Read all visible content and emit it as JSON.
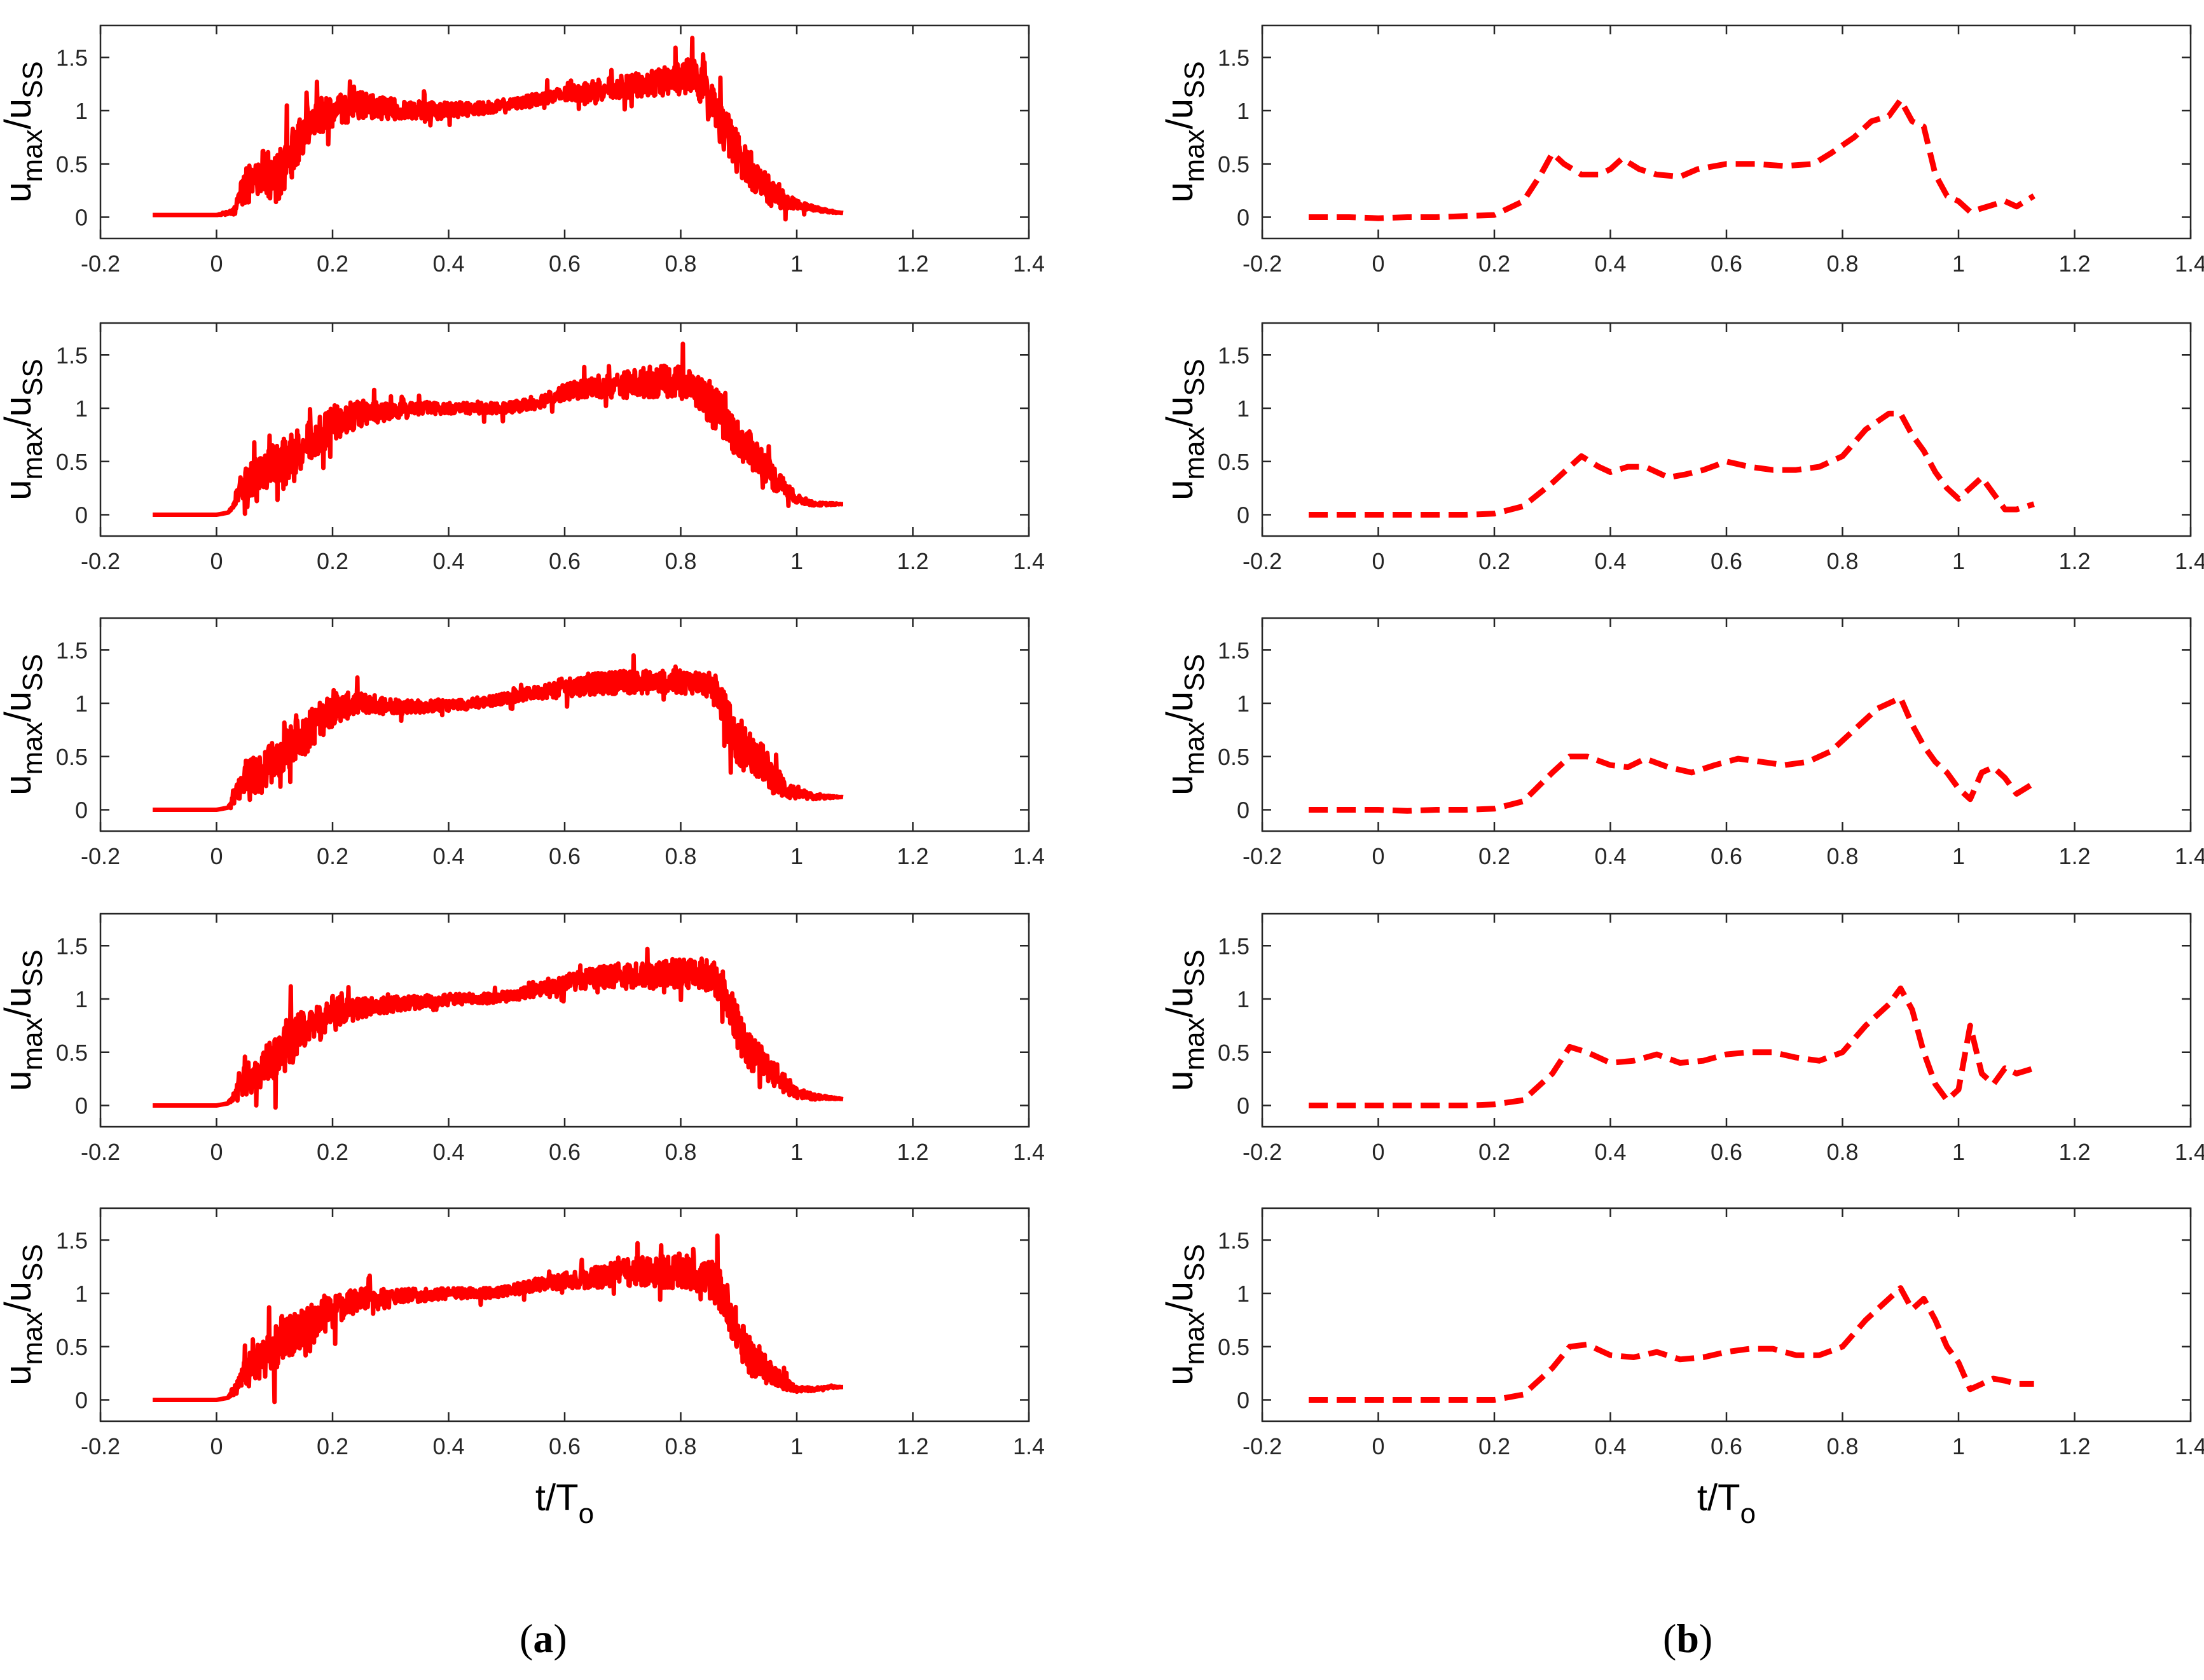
{
  "figure": {
    "panel_labels": [
      {
        "open": "(",
        "letter": "a",
        "close": ")"
      },
      {
        "open": "(",
        "letter": "b",
        "close": ")"
      }
    ],
    "ylabel": {
      "main": "u",
      "sub1": "max",
      "slash": "/u",
      "sub2": "SS"
    },
    "xlabel": {
      "main": "t/T",
      "sub": "o"
    },
    "colors": {
      "series": "#ff0000",
      "axes": "#262626",
      "tick_text": "#262626"
    }
  },
  "chart_data": [
    {
      "type": "line",
      "column": "a",
      "row": 1,
      "line_style": "solid",
      "xlim": [
        -0.2,
        1.4
      ],
      "ylim": [
        -0.2,
        1.8
      ],
      "xticks": [
        "-0.2",
        "0",
        "0.2",
        "0.4",
        "0.6",
        "0.8",
        "1",
        "1.2",
        "1.4"
      ],
      "yticks": [
        "0",
        "0.5",
        "1",
        "1.5"
      ],
      "x": [
        -0.11,
        -0.05,
        0.0,
        0.03,
        0.05,
        0.08,
        0.1,
        0.12,
        0.15,
        0.18,
        0.2,
        0.25,
        0.3,
        0.35,
        0.4,
        0.45,
        0.5,
        0.55,
        0.6,
        0.65,
        0.7,
        0.75,
        0.8,
        0.82,
        0.84,
        0.86,
        0.88,
        0.9,
        0.92,
        0.94,
        0.96,
        0.98,
        1.0,
        1.03,
        1.06,
        1.08
      ],
      "y": [
        0.02,
        0.02,
        0.02,
        0.05,
        0.3,
        0.45,
        0.35,
        0.5,
        0.8,
        0.95,
        1.0,
        1.05,
        1.02,
        1.0,
        1.0,
        1.02,
        1.05,
        1.1,
        1.15,
        1.2,
        1.22,
        1.25,
        1.3,
        1.35,
        1.2,
        1.0,
        0.75,
        0.6,
        0.45,
        0.3,
        0.22,
        0.15,
        0.12,
        0.08,
        0.05,
        0.04
      ],
      "noise": [
        0,
        0,
        0,
        0.05,
        0.4,
        0.4,
        0.45,
        0.5,
        0.4,
        0.35,
        0.3,
        0.25,
        0.2,
        0.18,
        0.15,
        0.12,
        0.1,
        0.12,
        0.15,
        0.2,
        0.22,
        0.25,
        0.3,
        0.35,
        0.35,
        0.4,
        0.45,
        0.4,
        0.35,
        0.3,
        0.25,
        0.15,
        0.08,
        0.04,
        0.02,
        0.0
      ]
    },
    {
      "type": "line",
      "column": "a",
      "row": 2,
      "line_style": "solid",
      "xlim": [
        -0.2,
        1.4
      ],
      "ylim": [
        -0.2,
        1.8
      ],
      "xticks": [
        "-0.2",
        "0",
        "0.2",
        "0.4",
        "0.6",
        "0.8",
        "1",
        "1.2",
        "1.4"
      ],
      "yticks": [
        "0",
        "0.5",
        "1",
        "1.5"
      ],
      "x": [
        -0.11,
        -0.05,
        0.0,
        0.02,
        0.05,
        0.08,
        0.1,
        0.12,
        0.15,
        0.18,
        0.2,
        0.25,
        0.3,
        0.35,
        0.4,
        0.45,
        0.5,
        0.55,
        0.6,
        0.65,
        0.7,
        0.75,
        0.8,
        0.82,
        0.84,
        0.86,
        0.88,
        0.9,
        0.92,
        0.94,
        0.96,
        0.98,
        1.0,
        1.03,
        1.06,
        1.08
      ],
      "y": [
        0.0,
        0.0,
        0.0,
        0.02,
        0.3,
        0.4,
        0.5,
        0.55,
        0.65,
        0.75,
        0.85,
        0.95,
        0.97,
        1.0,
        1.0,
        1.0,
        1.0,
        1.05,
        1.15,
        1.2,
        1.22,
        1.25,
        1.25,
        1.2,
        1.1,
        1.0,
        0.85,
        0.7,
        0.6,
        0.5,
        0.35,
        0.25,
        0.15,
        0.1,
        0.1,
        0.1
      ],
      "noise": [
        0,
        0,
        0,
        0.0,
        0.3,
        0.35,
        0.4,
        0.45,
        0.4,
        0.35,
        0.35,
        0.25,
        0.15,
        0.12,
        0.1,
        0.1,
        0.1,
        0.12,
        0.15,
        0.2,
        0.25,
        0.3,
        0.3,
        0.3,
        0.35,
        0.4,
        0.4,
        0.35,
        0.35,
        0.3,
        0.25,
        0.15,
        0.08,
        0.03,
        0.02,
        0.0
      ]
    },
    {
      "type": "line",
      "column": "a",
      "row": 3,
      "line_style": "solid",
      "xlim": [
        -0.2,
        1.4
      ],
      "ylim": [
        -0.2,
        1.8
      ],
      "xticks": [
        "-0.2",
        "0",
        "0.2",
        "0.4",
        "0.6",
        "0.8",
        "1",
        "1.2",
        "1.4"
      ],
      "yticks": [
        "0",
        "0.5",
        "1",
        "1.5"
      ],
      "x": [
        -0.11,
        -0.05,
        0.0,
        0.02,
        0.05,
        0.08,
        0.1,
        0.12,
        0.15,
        0.18,
        0.2,
        0.25,
        0.3,
        0.35,
        0.4,
        0.45,
        0.5,
        0.55,
        0.6,
        0.65,
        0.7,
        0.75,
        0.8,
        0.83,
        0.86,
        0.88,
        0.9,
        0.92,
        0.94,
        0.96,
        0.98,
        1.0,
        1.03,
        1.06,
        1.08
      ],
      "y": [
        0.0,
        0.0,
        0.0,
        0.02,
        0.3,
        0.35,
        0.45,
        0.55,
        0.7,
        0.85,
        0.95,
        1.0,
        0.98,
        0.97,
        0.98,
        1.0,
        1.05,
        1.1,
        1.15,
        1.18,
        1.2,
        1.2,
        1.2,
        1.2,
        1.15,
        0.85,
        0.6,
        0.55,
        0.45,
        0.3,
        0.2,
        0.15,
        0.12,
        0.12,
        0.12
      ],
      "noise": [
        0,
        0,
        0,
        0.0,
        0.35,
        0.4,
        0.4,
        0.4,
        0.4,
        0.35,
        0.3,
        0.2,
        0.15,
        0.12,
        0.1,
        0.1,
        0.1,
        0.12,
        0.18,
        0.2,
        0.22,
        0.22,
        0.22,
        0.22,
        0.25,
        0.4,
        0.45,
        0.4,
        0.35,
        0.3,
        0.2,
        0.1,
        0.05,
        0.02,
        0.0
      ]
    },
    {
      "type": "line",
      "column": "a",
      "row": 4,
      "line_style": "solid",
      "xlim": [
        -0.2,
        1.4
      ],
      "ylim": [
        -0.2,
        1.8
      ],
      "xticks": [
        "-0.2",
        "0",
        "0.2",
        "0.4",
        "0.6",
        "0.8",
        "1",
        "1.2",
        "1.4"
      ],
      "yticks": [
        "0",
        "0.5",
        "1",
        "1.5"
      ],
      "x": [
        -0.11,
        -0.05,
        0.0,
        0.02,
        0.05,
        0.08,
        0.1,
        0.12,
        0.15,
        0.18,
        0.2,
        0.25,
        0.3,
        0.35,
        0.4,
        0.45,
        0.5,
        0.55,
        0.6,
        0.65,
        0.7,
        0.75,
        0.8,
        0.83,
        0.86,
        0.88,
        0.9,
        0.92,
        0.94,
        0.96,
        0.98,
        1.0,
        1.03,
        1.06,
        1.08
      ],
      "y": [
        0.0,
        0.0,
        0.0,
        0.02,
        0.25,
        0.35,
        0.45,
        0.55,
        0.7,
        0.8,
        0.88,
        0.92,
        0.95,
        0.97,
        1.0,
        1.0,
        1.02,
        1.08,
        1.15,
        1.2,
        1.22,
        1.22,
        1.25,
        1.25,
        1.2,
        1.0,
        0.7,
        0.5,
        0.4,
        0.3,
        0.2,
        0.12,
        0.08,
        0.07,
        0.06
      ],
      "noise": [
        0,
        0,
        0,
        0.0,
        0.3,
        0.35,
        0.4,
        0.45,
        0.4,
        0.35,
        0.3,
        0.2,
        0.15,
        0.12,
        0.1,
        0.1,
        0.1,
        0.12,
        0.15,
        0.2,
        0.22,
        0.25,
        0.3,
        0.3,
        0.35,
        0.4,
        0.4,
        0.35,
        0.3,
        0.25,
        0.2,
        0.1,
        0.05,
        0.02,
        0.0
      ]
    },
    {
      "type": "line",
      "column": "a",
      "row": 5,
      "line_style": "solid",
      "xlim": [
        -0.2,
        1.4
      ],
      "ylim": [
        -0.2,
        1.8
      ],
      "xticks": [
        "-0.2",
        "0",
        "0.2",
        "0.4",
        "0.6",
        "0.8",
        "1",
        "1.2",
        "1.4"
      ],
      "yticks": [
        "0",
        "0.5",
        "1",
        "1.5"
      ],
      "x": [
        -0.11,
        -0.05,
        0.0,
        0.02,
        0.05,
        0.08,
        0.1,
        0.12,
        0.15,
        0.18,
        0.2,
        0.25,
        0.3,
        0.35,
        0.4,
        0.45,
        0.5,
        0.55,
        0.6,
        0.65,
        0.7,
        0.75,
        0.8,
        0.83,
        0.86,
        0.88,
        0.9,
        0.92,
        0.94,
        0.96,
        0.98,
        1.0,
        1.03,
        1.06,
        1.08
      ],
      "y": [
        0.0,
        0.0,
        0.0,
        0.02,
        0.25,
        0.4,
        0.5,
        0.6,
        0.7,
        0.75,
        0.85,
        0.95,
        0.97,
        0.98,
        1.0,
        1.0,
        1.02,
        1.08,
        1.12,
        1.15,
        1.2,
        1.2,
        1.2,
        1.18,
        1.1,
        0.9,
        0.6,
        0.4,
        0.3,
        0.25,
        0.15,
        0.1,
        0.1,
        0.12,
        0.12
      ],
      "noise": [
        0,
        0,
        0,
        0.0,
        0.3,
        0.4,
        0.45,
        0.45,
        0.4,
        0.35,
        0.3,
        0.2,
        0.15,
        0.12,
        0.1,
        0.1,
        0.1,
        0.12,
        0.15,
        0.2,
        0.25,
        0.3,
        0.35,
        0.35,
        0.4,
        0.4,
        0.4,
        0.35,
        0.3,
        0.2,
        0.12,
        0.05,
        0.03,
        0.02,
        0.0
      ]
    },
    {
      "type": "line",
      "column": "b",
      "row": 1,
      "line_style": "dashed",
      "xlim": [
        -0.2,
        1.4
      ],
      "ylim": [
        -0.2,
        1.8
      ],
      "xticks": [
        "-0.2",
        "0",
        "0.2",
        "0.4",
        "0.6",
        "0.8",
        "1",
        "1.2",
        "1.4"
      ],
      "yticks": [
        "0",
        "0.5",
        "1",
        "1.5"
      ],
      "x": [
        -0.12,
        -0.05,
        0.0,
        0.05,
        0.1,
        0.15,
        0.2,
        0.25,
        0.28,
        0.3,
        0.32,
        0.35,
        0.38,
        0.4,
        0.42,
        0.45,
        0.48,
        0.52,
        0.55,
        0.6,
        0.65,
        0.7,
        0.75,
        0.78,
        0.82,
        0.85,
        0.88,
        0.9,
        0.92,
        0.94,
        0.96,
        0.98,
        1.0,
        1.02,
        1.05,
        1.08,
        1.1,
        1.13
      ],
      "y": [
        0.0,
        0.0,
        -0.01,
        0.0,
        0.0,
        0.01,
        0.02,
        0.15,
        0.4,
        0.6,
        0.5,
        0.4,
        0.4,
        0.45,
        0.55,
        0.45,
        0.4,
        0.38,
        0.45,
        0.5,
        0.5,
        0.48,
        0.5,
        0.6,
        0.75,
        0.9,
        0.95,
        1.1,
        0.9,
        0.85,
        0.4,
        0.2,
        0.15,
        0.05,
        0.1,
        0.15,
        0.1,
        0.2
      ],
      "noise": []
    },
    {
      "type": "line",
      "column": "b",
      "row": 2,
      "line_style": "dashed",
      "xlim": [
        -0.2,
        1.4
      ],
      "ylim": [
        -0.2,
        1.8
      ],
      "xticks": [
        "-0.2",
        "0",
        "0.2",
        "0.4",
        "0.6",
        "0.8",
        "1",
        "1.2",
        "1.4"
      ],
      "yticks": [
        "0",
        "0.5",
        "1",
        "1.5"
      ],
      "x": [
        -0.12,
        -0.05,
        0.0,
        0.05,
        0.1,
        0.15,
        0.2,
        0.25,
        0.3,
        0.33,
        0.35,
        0.38,
        0.4,
        0.43,
        0.46,
        0.5,
        0.53,
        0.56,
        0.6,
        0.64,
        0.68,
        0.72,
        0.76,
        0.8,
        0.84,
        0.88,
        0.9,
        0.92,
        0.94,
        0.96,
        0.98,
        1.0,
        1.02,
        1.04,
        1.06,
        1.08,
        1.1,
        1.13
      ],
      "y": [
        0.0,
        0.0,
        0.0,
        0.0,
        0.0,
        0.0,
        0.01,
        0.08,
        0.3,
        0.45,
        0.55,
        0.45,
        0.4,
        0.45,
        0.45,
        0.35,
        0.38,
        0.42,
        0.5,
        0.45,
        0.42,
        0.42,
        0.45,
        0.55,
        0.8,
        0.95,
        0.95,
        0.75,
        0.6,
        0.4,
        0.25,
        0.15,
        0.25,
        0.35,
        0.2,
        0.05,
        0.05,
        0.1
      ],
      "noise": []
    },
    {
      "type": "line",
      "column": "b",
      "row": 3,
      "line_style": "dashed",
      "xlim": [
        -0.2,
        1.4
      ],
      "ylim": [
        -0.2,
        1.8
      ],
      "xticks": [
        "-0.2",
        "0",
        "0.2",
        "0.4",
        "0.6",
        "0.8",
        "1",
        "1.2",
        "1.4"
      ],
      "yticks": [
        "0",
        "0.5",
        "1",
        "1.5"
      ],
      "x": [
        -0.12,
        -0.05,
        0.0,
        0.05,
        0.1,
        0.15,
        0.2,
        0.25,
        0.3,
        0.33,
        0.36,
        0.4,
        0.43,
        0.46,
        0.5,
        0.54,
        0.58,
        0.62,
        0.66,
        0.7,
        0.74,
        0.78,
        0.82,
        0.86,
        0.9,
        0.92,
        0.94,
        0.96,
        0.98,
        1.0,
        1.02,
        1.04,
        1.06,
        1.08,
        1.1,
        1.13
      ],
      "y": [
        0.0,
        0.0,
        0.0,
        -0.01,
        0.0,
        0.0,
        0.01,
        0.08,
        0.35,
        0.5,
        0.5,
        0.42,
        0.4,
        0.48,
        0.4,
        0.35,
        0.42,
        0.48,
        0.45,
        0.42,
        0.45,
        0.55,
        0.75,
        0.95,
        1.05,
        0.8,
        0.6,
        0.45,
        0.35,
        0.2,
        0.1,
        0.35,
        0.4,
        0.3,
        0.15,
        0.25
      ],
      "noise": []
    },
    {
      "type": "line",
      "column": "b",
      "row": 4,
      "line_style": "dashed",
      "xlim": [
        -0.2,
        1.4
      ],
      "ylim": [
        -0.2,
        1.8
      ],
      "xticks": [
        "-0.2",
        "0",
        "0.2",
        "0.4",
        "0.6",
        "0.8",
        "1",
        "1.2",
        "1.4"
      ],
      "yticks": [
        "0",
        "0.5",
        "1",
        "1.5"
      ],
      "x": [
        -0.12,
        -0.05,
        0.0,
        0.05,
        0.1,
        0.15,
        0.2,
        0.25,
        0.3,
        0.33,
        0.36,
        0.4,
        0.44,
        0.48,
        0.52,
        0.56,
        0.6,
        0.64,
        0.68,
        0.72,
        0.76,
        0.8,
        0.84,
        0.88,
        0.9,
        0.92,
        0.94,
        0.96,
        0.98,
        1.0,
        1.02,
        1.04,
        1.06,
        1.08,
        1.1,
        1.13
      ],
      "y": [
        0.0,
        0.0,
        0.0,
        0.0,
        0.0,
        0.0,
        0.01,
        0.05,
        0.3,
        0.55,
        0.5,
        0.4,
        0.42,
        0.48,
        0.4,
        0.42,
        0.48,
        0.5,
        0.5,
        0.45,
        0.42,
        0.5,
        0.75,
        0.95,
        1.1,
        0.9,
        0.5,
        0.2,
        0.05,
        0.15,
        0.75,
        0.3,
        0.2,
        0.35,
        0.3,
        0.35
      ],
      "noise": []
    },
    {
      "type": "line",
      "column": "b",
      "row": 5,
      "line_style": "dashed",
      "xlim": [
        -0.2,
        1.4
      ],
      "ylim": [
        -0.2,
        1.8
      ],
      "xticks": [
        "-0.2",
        "0",
        "0.2",
        "0.4",
        "0.6",
        "0.8",
        "1",
        "1.2",
        "1.4"
      ],
      "yticks": [
        "0",
        "0.5",
        "1",
        "1.5"
      ],
      "x": [
        -0.12,
        -0.05,
        0.0,
        0.05,
        0.1,
        0.15,
        0.2,
        0.25,
        0.3,
        0.33,
        0.36,
        0.4,
        0.44,
        0.48,
        0.52,
        0.56,
        0.6,
        0.64,
        0.68,
        0.72,
        0.76,
        0.8,
        0.84,
        0.88,
        0.9,
        0.92,
        0.94,
        0.96,
        0.98,
        1.0,
        1.02,
        1.04,
        1.06,
        1.08,
        1.1,
        1.13
      ],
      "y": [
        0.0,
        0.0,
        0.0,
        0.0,
        0.0,
        0.0,
        0.0,
        0.05,
        0.3,
        0.5,
        0.52,
        0.42,
        0.4,
        0.45,
        0.38,
        0.4,
        0.45,
        0.48,
        0.48,
        0.42,
        0.42,
        0.5,
        0.75,
        0.95,
        1.05,
        0.85,
        0.95,
        0.75,
        0.5,
        0.35,
        0.1,
        0.15,
        0.2,
        0.18,
        0.15,
        0.15
      ],
      "noise": []
    }
  ]
}
